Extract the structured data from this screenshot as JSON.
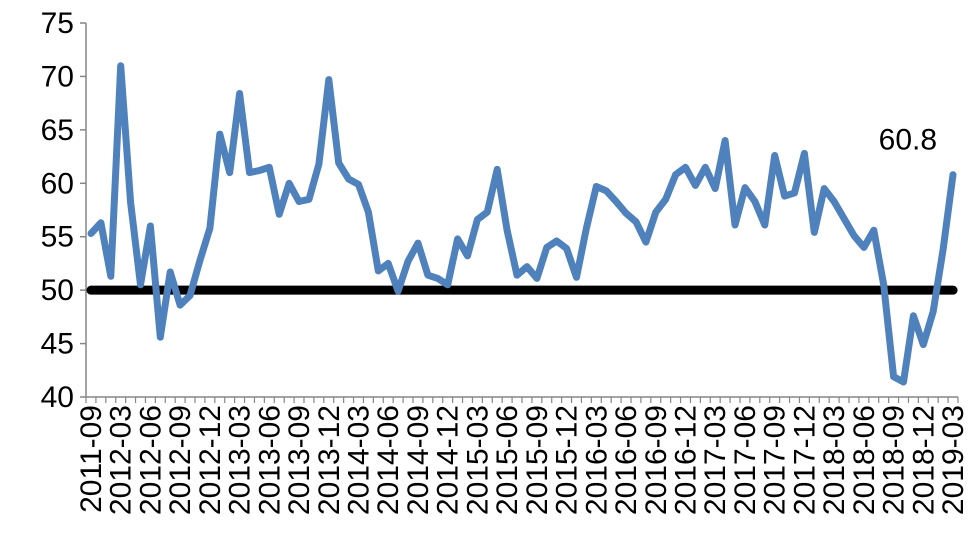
{
  "chart_data": {
    "type": "line",
    "title": "",
    "xlabel": "",
    "ylabel": "",
    "ylim": [
      40,
      75
    ],
    "yticks": [
      "40",
      "45",
      "50",
      "55",
      "60",
      "65",
      "70",
      "75"
    ],
    "x_tick_labels": [
      "2011-09",
      "2012-03",
      "2012-06",
      "2012-09",
      "2012-12",
      "2013-03",
      "2013-06",
      "2013-09",
      "2013-12",
      "2014-03",
      "2014-06",
      "2014-09",
      "2014-12",
      "2015-03",
      "2015-06",
      "2015-09",
      "2015-12",
      "2016-03",
      "2016-06",
      "2016-09",
      "2016-12",
      "2017-03",
      "2017-06",
      "2017-09",
      "2017-12",
      "2018-03",
      "2018-06",
      "2018-09",
      "2018-12",
      "2019-03"
    ],
    "x_start": "2011-09",
    "x_end": "2019-03",
    "series": [
      {
        "color": "#4f81bd",
        "values": [
          55.3,
          56.3,
          51.3,
          71.0,
          58.2,
          50.5,
          56.0,
          45.6,
          51.7,
          48.6,
          49.5,
          52.8,
          55.8,
          64.6,
          61.0,
          68.4,
          61.0,
          61.2,
          61.5,
          57.1,
          60.0,
          58.3,
          58.5,
          61.8,
          69.7,
          61.9,
          60.4,
          59.9,
          57.3,
          51.8,
          52.5,
          49.9,
          52.7,
          54.4,
          51.4,
          51.1,
          50.5,
          54.8,
          53.2,
          56.6,
          57.3,
          61.3,
          55.6,
          51.4,
          52.2,
          51.1,
          54.0,
          54.6,
          53.9,
          51.2,
          55.8,
          59.7,
          59.3,
          58.3,
          57.2,
          56.4,
          54.5,
          57.3,
          58.5,
          60.8,
          61.5,
          59.8,
          61.5,
          59.5,
          64.0,
          56.1,
          59.6,
          58.3,
          56.1,
          62.6,
          58.8,
          59.1,
          62.8,
          55.4,
          59.5,
          58.3,
          56.7,
          55.1,
          54.0,
          55.6,
          50.5,
          41.9,
          41.4,
          47.6,
          44.9,
          48.0,
          53.8,
          60.8
        ]
      },
      {
        "name": "",
        "color": "#000000",
        "values": "constant",
        "level": 50
      }
    ],
    "annotations": [
      {
        "text": "60.8",
        "at": "last-point"
      }
    ],
    "grid": false,
    "legend": "none"
  }
}
